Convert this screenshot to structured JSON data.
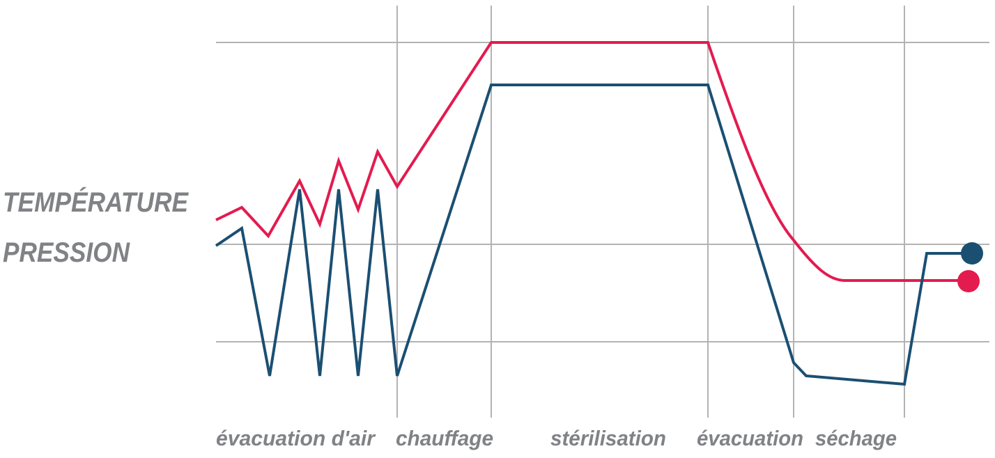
{
  "labels": {
    "temperature": "TEMPÉRATURE",
    "pressure": "PRESSION"
  },
  "phases": [
    "évacuation d'air",
    "chauffage",
    "stérilisation",
    "évacuation",
    "séchage"
  ]
}
